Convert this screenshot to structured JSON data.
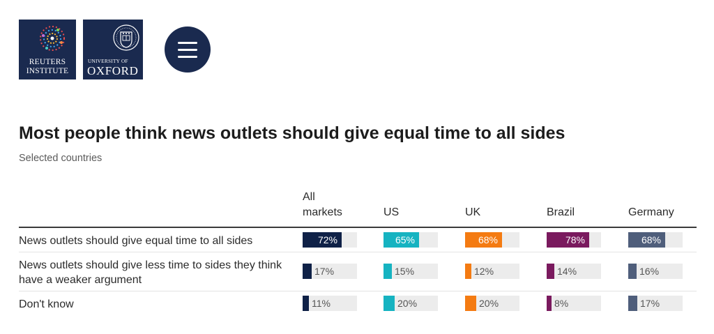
{
  "header": {
    "logo_reuters_line1": "REUTERS",
    "logo_reuters_line2": "INSTITUTE",
    "logo_oxford_line1": "UNIVERSITY OF",
    "logo_oxford_line2": "OXFORD",
    "colors": {
      "logo_bg": "#1a2a4f",
      "menu_bg": "#1a2a4f"
    },
    "menu_icon": "hamburger-icon"
  },
  "chart_data": {
    "type": "table",
    "title": "Most people think news outlets should give equal time to all sides",
    "subtitle": "Selected countries",
    "columns": [
      {
        "name": "All markets",
        "color": "#0f2147"
      },
      {
        "name": "US",
        "color": "#16b3c1"
      },
      {
        "name": "UK",
        "color": "#f47b12"
      },
      {
        "name": "Brazil",
        "color": "#7a1a5e"
      },
      {
        "name": "Germany",
        "color": "#4f5e7b"
      }
    ],
    "rows": [
      {
        "label": "News outlets should give equal time to all sides",
        "values": [
          72,
          65,
          68,
          78,
          68
        ]
      },
      {
        "label": "News outlets should give less time to sides they think have a weaker argument",
        "values": [
          17,
          15,
          12,
          14,
          16
        ]
      },
      {
        "label": "Don't know",
        "values": [
          11,
          20,
          20,
          8,
          17
        ]
      }
    ],
    "value_format": "{v}%",
    "ylim": [
      0,
      100
    ]
  }
}
